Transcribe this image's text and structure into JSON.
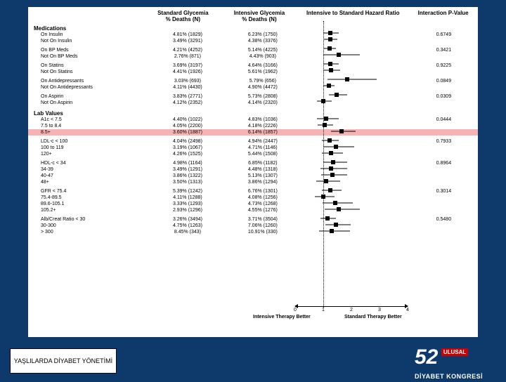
{
  "layout": {
    "xmin": 0,
    "xmax": 4,
    "ref": 1
  },
  "headers": {
    "c1": "",
    "c2": "Standard Glycemia\n% Deaths (N)",
    "c3": "Intensive Glycemia\n% Deaths (N)",
    "c4": "Intensive to Standard Hazard Ratio",
    "c5": "Interaction P-Value"
  },
  "sections": [
    {
      "title": "Medications",
      "groups": [
        {
          "p": "0.6749",
          "rows": [
            {
              "l": "On Insulin",
              "s": "4.81% (1829)",
              "i": "6.23% (1750)",
              "hr": 1.25,
              "lo": 1.0,
              "hi": 1.55
            },
            {
              "l": "Not On Insulin",
              "s": "3.49% (3291)",
              "i": "4.38% (3376)",
              "hr": 1.25,
              "lo": 1.02,
              "hi": 1.5
            }
          ]
        },
        {
          "p": "0.3421",
          "rows": [
            {
              "l": "On BP Meds",
              "s": "4.21% (4252)",
              "i": "5.14% (4225)",
              "hr": 1.22,
              "lo": 1.02,
              "hi": 1.45
            },
            {
              "l": "Not On BP Meds",
              "s": "2.76% (871)",
              "i": "4.43% (903)",
              "hr": 1.55,
              "lo": 1.0,
              "hi": 2.3
            }
          ]
        },
        {
          "p": "0.9225",
          "rows": [
            {
              "l": "On Statins",
              "s": "3.69% (3197)",
              "i": "4.64% (3166)",
              "hr": 1.25,
              "lo": 1.0,
              "hi": 1.55
            },
            {
              "l": "Not On Statins",
              "s": "4.41% (1926)",
              "i": "5.61% (1962)",
              "hr": 1.27,
              "lo": 1.0,
              "hi": 1.6
            }
          ]
        },
        {
          "p": "0.0849",
          "rows": [
            {
              "l": "On Antidepressants",
              "s": "3.03% (693)",
              "i": "5.79% (656)",
              "hr": 1.85,
              "lo": 1.15,
              "hi": 2.9
            },
            {
              "l": "Not On Antidepressants",
              "s": "4.11% (4430)",
              "i": "4.90% (4472)",
              "hr": 1.19,
              "lo": 1.0,
              "hi": 1.4
            }
          ]
        },
        {
          "p": "0.0309",
          "rows": [
            {
              "l": "On Aspirin",
              "s": "3.83% (2771)",
              "i": "5.73% (2808)",
              "hr": 1.48,
              "lo": 1.2,
              "hi": 1.85
            },
            {
              "l": "Not On Aspirin",
              "s": "4.12% (2352)",
              "i": "4.14% (2320)",
              "hr": 1.0,
              "lo": 0.78,
              "hi": 1.3
            }
          ]
        }
      ]
    },
    {
      "title": "Lab Values",
      "groups": [
        {
          "p": "0.0444",
          "rows": [
            {
              "l": "A1c < 7.5",
              "s": "4.40% (1022)",
              "i": "4.83% (1036)",
              "hr": 1.1,
              "lo": 0.78,
              "hi": 1.55
            },
            {
              "l": "7.5 to 8.4",
              "s": "4.05% (2200)",
              "i": "4.18% (2226)",
              "hr": 1.05,
              "lo": 0.8,
              "hi": 1.35
            },
            {
              "l": "8.5+",
              "s": "3.60% (1887)",
              "i": "6.14% (1857)",
              "hr": 1.65,
              "lo": 1.28,
              "hi": 2.15,
              "hi_row": true
            }
          ]
        },
        {
          "p": "0.7933",
          "rows": [
            {
              "l": "LDL-c < 100",
              "s": "4.04% (2498)",
              "i": "4.94% (2447)",
              "hr": 1.22,
              "lo": 0.96,
              "hi": 1.55
            },
            {
              "l": "100 to 119",
              "s": "3.19% (1067)",
              "i": "4.71% (1146)",
              "hr": 1.45,
              "lo": 1.0,
              "hi": 2.1
            },
            {
              "l": "120+",
              "s": "4.26% (1525)",
              "i": "5.44% (1508)",
              "hr": 1.28,
              "lo": 0.95,
              "hi": 1.7
            }
          ]
        },
        {
          "p": "0.8964",
          "rows": [
            {
              "l": "HDL-c < 34",
              "s": "4.98% (1164)",
              "i": "6.85% (1182)",
              "hr": 1.35,
              "lo": 1.0,
              "hi": 1.85
            },
            {
              "l": "34-39",
              "s": "3.49% (1291)",
              "i": "4.48% (1318)",
              "hr": 1.28,
              "lo": 0.9,
              "hi": 1.85
            },
            {
              "l": "40-47",
              "s": "3.86% (1322)",
              "i": "5.13% (1307)",
              "hr": 1.32,
              "lo": 0.93,
              "hi": 1.85
            },
            {
              "l": "48+",
              "s": "3.50% (1313)",
              "i": "3.86% (1294)",
              "hr": 1.1,
              "lo": 0.75,
              "hi": 1.6
            }
          ]
        },
        {
          "p": "0.3014",
          "rows": [
            {
              "l": "GFR < 75.4",
              "s": "5.39% (1242)",
              "i": "6.76% (1301)",
              "hr": 1.25,
              "lo": 0.95,
              "hi": 1.65
            },
            {
              "l": "75.4-89.5",
              "s": "4.11% (1288)",
              "i": "4.08% (1256)",
              "hr": 1.0,
              "lo": 0.7,
              "hi": 1.4
            },
            {
              "l": "89.6-105.1",
              "s": "3.33% (1293)",
              "i": "4.73% (1268)",
              "hr": 1.42,
              "lo": 0.98,
              "hi": 2.05
            },
            {
              "l": "105.2+",
              "s": "2.93% (1296)",
              "i": "4.55% (1276)",
              "hr": 1.55,
              "lo": 1.05,
              "hi": 2.3
            }
          ]
        },
        {
          "p": "0.5480",
          "rows": [
            {
              "l": "Alb/Creat Ratio < 30",
              "s": "3.26% (3494)",
              "i": "3.71% (3504)",
              "hr": 1.15,
              "lo": 0.9,
              "hi": 1.45
            },
            {
              "l": "30-300",
              "s": "4.75% (1263)",
              "i": "7.06% (1260)",
              "hr": 1.45,
              "lo": 1.08,
              "hi": 1.98
            },
            {
              "l": "> 300",
              "s": "8.45% (343)",
              "i": "10.91% (330)",
              "hr": 1.3,
              "lo": 0.85,
              "hi": 1.95
            }
          ]
        }
      ]
    }
  ],
  "axis": {
    "ticks": [
      "0",
      "1",
      "2",
      "3",
      "4"
    ],
    "left": "Intensive Therapy Better",
    "right": "Standard Therapy Better"
  },
  "footer": {
    "title": "YAŞLILARDA DİYABET YÖNETİMİ",
    "logo_num": "52",
    "logo_tag": "ULUSAL",
    "logo_line": "DİYABET KONGRESİ"
  }
}
